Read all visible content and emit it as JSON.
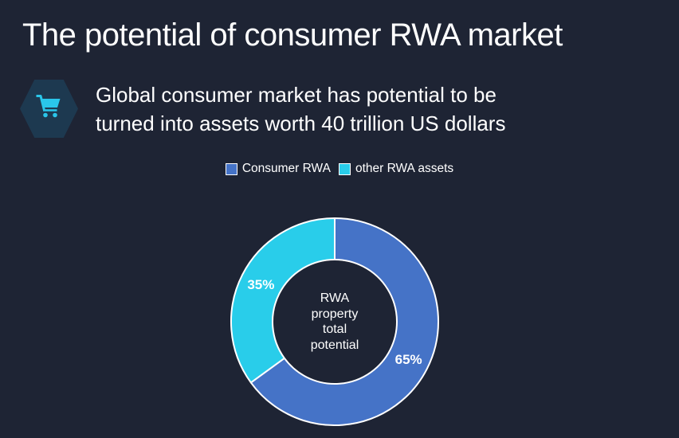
{
  "page": {
    "title": "The potential of consumer RWA market",
    "subtitle_lines": [
      "Global consumer market has potential to be",
      "turned into assets worth 40 trillion US dollars"
    ],
    "background_color": "#1e2434"
  },
  "icon": {
    "name": "shopping-cart",
    "hexagon_fill": "#1d3950",
    "cart_color": "#2ac6ea"
  },
  "chart_data": {
    "type": "pie",
    "subtype": "donut",
    "categories": [
      "Consumer RWA",
      "other RWA assets"
    ],
    "values": [
      65,
      35
    ],
    "labels": [
      "65%",
      "35%"
    ],
    "colors": [
      "#4573c7",
      "#29cdea"
    ],
    "stroke_color": "#ffffff",
    "start_angle_deg": 0,
    "direction": "clockwise",
    "legend_position": "top",
    "center_label_lines": [
      "RWA",
      "property",
      "total",
      "potential"
    ]
  }
}
